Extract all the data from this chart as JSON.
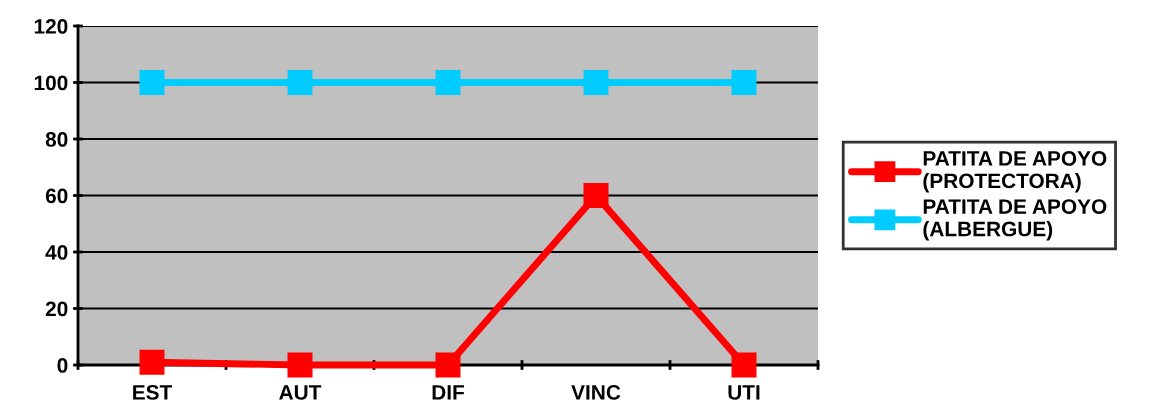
{
  "chart_data": {
    "type": "line",
    "categories": [
      "EST",
      "AUT",
      "DIF",
      "VINC",
      "UTI"
    ],
    "series": [
      {
        "name": "PATITA DE APOYO\n(PROTECTORA)",
        "color": "#ff0000",
        "values": [
          1,
          0,
          0,
          60,
          0
        ]
      },
      {
        "name": "PATITA DE APOYO\n(ALBERGUE)",
        "color": "#00ccff",
        "values": [
          100,
          100,
          100,
          100,
          100
        ]
      }
    ],
    "ylim": [
      0,
      120
    ],
    "yticks": [
      0,
      20,
      40,
      60,
      80,
      100,
      120
    ],
    "grid": "y",
    "legend": "right",
    "marker": "square",
    "line_style": "solid"
  }
}
